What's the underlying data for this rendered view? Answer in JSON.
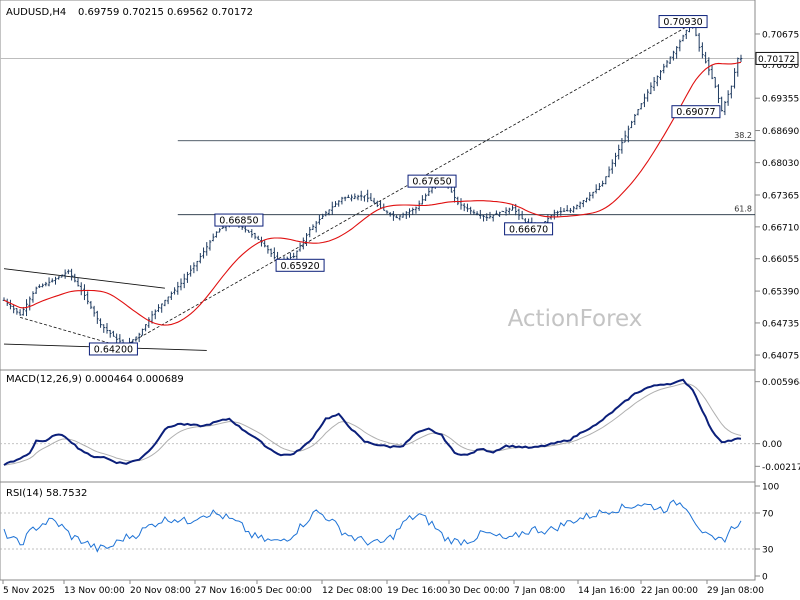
{
  "header": {
    "symbol": "AUDUSD,H4",
    "ohlc": "0.69759 0.70215 0.69562 0.70172"
  },
  "watermark": "ActionForex",
  "colors": {
    "candle": "#1e3a5f",
    "ma": "#e01010",
    "macd": "#0b1f7a",
    "signal": "#b0b0b0",
    "rsi": "#1e73d6",
    "grid": "#c8c8c8",
    "box": "#0b1f7a",
    "current": "#111111"
  },
  "chart_data": [
    {
      "type": "candlestick",
      "title": "AUDUSD,H4 0.69759 0.70215 0.69562 0.70172",
      "ylim": [
        0.6385,
        0.7125
      ],
      "y_ticks": [
        "0.70675",
        "0.70050",
        "0.69355",
        "0.68690",
        "0.68030",
        "0.67365",
        "0.66710",
        "0.66055",
        "0.65390",
        "0.64735",
        "0.64075"
      ],
      "current_price": "0.70172",
      "x_ticks": [
        "5 Nov 2025",
        "13 Nov 00:00",
        "20 Nov 08:00",
        "27 Nov 16:00",
        "5 Dec 00:00",
        "12 Dec 08:00",
        "19 Dec 16:00",
        "30 Dec 00:00",
        "7 Jan 08:00",
        "14 Jan 16:00",
        "22 Jan 00:00",
        "29 Jan 08:00"
      ],
      "price_anchors": [
        [
          0,
          0.652
        ],
        [
          5,
          0.649
        ],
        [
          10,
          0.6545
        ],
        [
          15,
          0.656
        ],
        [
          20,
          0.658
        ],
        [
          25,
          0.653
        ],
        [
          30,
          0.647
        ],
        [
          35,
          0.644
        ],
        [
          38,
          0.6428
        ],
        [
          42,
          0.645
        ],
        [
          46,
          0.649
        ],
        [
          50,
          0.652
        ],
        [
          55,
          0.6555
        ],
        [
          60,
          0.66
        ],
        [
          66,
          0.666
        ],
        [
          71,
          0.6685
        ],
        [
          76,
          0.666
        ],
        [
          80,
          0.664
        ],
        [
          85,
          0.66
        ],
        [
          90,
          0.661
        ],
        [
          95,
          0.6665
        ],
        [
          100,
          0.67
        ],
        [
          105,
          0.673
        ],
        [
          112,
          0.6735
        ],
        [
          118,
          0.6705
        ],
        [
          122,
          0.669
        ],
        [
          128,
          0.671
        ],
        [
          134,
          0.676
        ],
        [
          137,
          0.6765
        ],
        [
          141,
          0.672
        ],
        [
          146,
          0.67
        ],
        [
          150,
          0.669
        ],
        [
          154,
          0.67
        ],
        [
          158,
          0.671
        ],
        [
          162,
          0.668
        ],
        [
          166,
          0.667
        ],
        [
          171,
          0.67
        ],
        [
          176,
          0.6705
        ],
        [
          181,
          0.673
        ],
        [
          186,
          0.676
        ],
        [
          191,
          0.683
        ],
        [
          196,
          0.69
        ],
        [
          201,
          0.696
        ],
        [
          205,
          0.7
        ],
        [
          209,
          0.704
        ],
        [
          212,
          0.7075
        ],
        [
          214,
          0.709
        ],
        [
          216,
          0.704
        ],
        [
          218,
          0.701
        ],
        [
          221,
          0.696
        ],
        [
          223,
          0.691
        ],
        [
          226,
          0.696
        ],
        [
          228,
          0.7017
        ]
      ],
      "labels": [
        {
          "text": "0.70930",
          "index": 211,
          "value": 0.7093
        },
        {
          "text": "0.69077",
          "index": 215,
          "value": 0.69077
        },
        {
          "text": "0.67650",
          "index": 133,
          "value": 0.6765
        },
        {
          "text": "0.66850",
          "index": 73,
          "value": 0.6685
        },
        {
          "text": "0.65920",
          "index": 92,
          "value": 0.6592
        },
        {
          "text": "0.66670",
          "index": 163,
          "value": 0.6667
        },
        {
          "text": "0.64200",
          "index": 34,
          "value": 0.642
        }
      ],
      "fib_levels": [
        {
          "label": "38.2",
          "value": 0.6848
        },
        {
          "label": "61.8",
          "value": 0.6696
        }
      ],
      "channel": {
        "upper": [
          [
            0,
            0.6585
          ],
          [
            50,
            0.6545
          ]
        ],
        "lower": [
          [
            0,
            0.643
          ],
          [
            63,
            0.6417
          ]
        ],
        "inner": [
          [
            5,
            0.6485
          ],
          [
            38,
            0.6422
          ]
        ]
      },
      "trendline": [
        [
          38,
          0.6428
        ],
        [
          215,
          0.7093
        ]
      ],
      "moving_average_name": "MA",
      "bars": 230
    },
    {
      "type": "line",
      "title": "MACD(12,26,9) 0.000464 0.000689",
      "ylim": [
        -0.0033,
        0.0067
      ],
      "y_ticks": [
        "0.005964",
        "0.00",
        "-0.002177"
      ],
      "series": [
        {
          "name": "MACD",
          "anchors": [
            [
              0,
              -0.002
            ],
            [
              4,
              -0.0016
            ],
            [
              8,
              -0.0009
            ],
            [
              10,
              0.0003
            ],
            [
              13,
              0.0002
            ],
            [
              16,
              0.0009
            ],
            [
              19,
              0.0007
            ],
            [
              23,
              -0.0004
            ],
            [
              27,
              -0.0012
            ],
            [
              31,
              -0.0013
            ],
            [
              35,
              -0.0018
            ],
            [
              38,
              -0.0019
            ],
            [
              42,
              -0.0015
            ],
            [
              46,
              -0.0004
            ],
            [
              50,
              0.0014
            ],
            [
              54,
              0.0019
            ],
            [
              58,
              0.0018
            ],
            [
              62,
              0.0017
            ],
            [
              66,
              0.0021
            ],
            [
              70,
              0.0024
            ],
            [
              74,
              0.0014
            ],
            [
              78,
              0.0006
            ],
            [
              82,
              -0.0004
            ],
            [
              86,
              -0.0011
            ],
            [
              90,
              -0.001
            ],
            [
              95,
              0.0002
            ],
            [
              100,
              0.0024
            ],
            [
              104,
              0.0028
            ],
            [
              108,
              0.0014
            ],
            [
              112,
              0.0002
            ],
            [
              116,
              -0.0001
            ],
            [
              120,
              -0.0003
            ],
            [
              124,
              -0.0002
            ],
            [
              128,
              0.001
            ],
            [
              132,
              0.0014
            ],
            [
              136,
              0.0008
            ],
            [
              140,
              -0.0009
            ],
            [
              144,
              -0.0011
            ],
            [
              148,
              -0.0005
            ],
            [
              152,
              -0.0008
            ],
            [
              156,
              -0.0002
            ],
            [
              160,
              -0.0003
            ],
            [
              164,
              -0.0004
            ],
            [
              168,
              -0.0002
            ],
            [
              172,
              0.0001
            ],
            [
              176,
              0.0004
            ],
            [
              180,
              0.0012
            ],
            [
              184,
              0.0018
            ],
            [
              188,
              0.0028
            ],
            [
              192,
              0.0038
            ],
            [
              196,
              0.0048
            ],
            [
              200,
              0.0054
            ],
            [
              204,
              0.0057
            ],
            [
              208,
              0.0058
            ],
            [
              211,
              0.0061
            ],
            [
              214,
              0.0052
            ],
            [
              217,
              0.0032
            ],
            [
              220,
              0.0012
            ],
            [
              223,
              0.0002
            ],
            [
              226,
              0.0003
            ],
            [
              228,
              0.000464
            ]
          ]
        },
        {
          "name": "Signal",
          "smoothing": 9
        }
      ]
    },
    {
      "type": "line",
      "title": "RSI(14) 58.7532",
      "ylim": [
        0,
        100
      ],
      "y_ticks": [
        "100",
        "70",
        "30",
        "0"
      ],
      "levels": [
        70,
        30
      ],
      "series": [
        {
          "name": "RSI",
          "anchors": [
            [
              0,
              48
            ],
            [
              5,
              35
            ],
            [
              9,
              52
            ],
            [
              12,
              58
            ],
            [
              15,
              62
            ],
            [
              18,
              55
            ],
            [
              21,
              44
            ],
            [
              25,
              38
            ],
            [
              29,
              30
            ],
            [
              33,
              32
            ],
            [
              37,
              42
            ],
            [
              41,
              46
            ],
            [
              45,
              55
            ],
            [
              49,
              62
            ],
            [
              53,
              64
            ],
            [
              57,
              60
            ],
            [
              61,
              68
            ],
            [
              65,
              70
            ],
            [
              69,
              65
            ],
            [
              73,
              58
            ],
            [
              77,
              45
            ],
            [
              81,
              40
            ],
            [
              85,
              38
            ],
            [
              89,
              44
            ],
            [
              93,
              58
            ],
            [
              97,
              72
            ],
            [
              101,
              64
            ],
            [
              105,
              50
            ],
            [
              109,
              42
            ],
            [
              113,
              38
            ],
            [
              117,
              36
            ],
            [
              121,
              45
            ],
            [
              125,
              62
            ],
            [
              129,
              68
            ],
            [
              133,
              58
            ],
            [
              137,
              42
            ],
            [
              141,
              38
            ],
            [
              145,
              40
            ],
            [
              149,
              48
            ],
            [
              153,
              44
            ],
            [
              157,
              40
            ],
            [
              161,
              48
            ],
            [
              165,
              52
            ],
            [
              169,
              50
            ],
            [
              173,
              56
            ],
            [
              177,
              62
            ],
            [
              181,
              66
            ],
            [
              185,
              70
            ],
            [
              189,
              74
            ],
            [
              193,
              76
            ],
            [
              197,
              80
            ],
            [
              201,
              78
            ],
            [
              205,
              74
            ],
            [
              209,
              82
            ],
            [
              212,
              78
            ],
            [
              215,
              60
            ],
            [
              218,
              45
            ],
            [
              221,
              38
            ],
            [
              224,
              42
            ],
            [
              226,
              52
            ],
            [
              228,
              58.75
            ]
          ]
        }
      ]
    }
  ]
}
